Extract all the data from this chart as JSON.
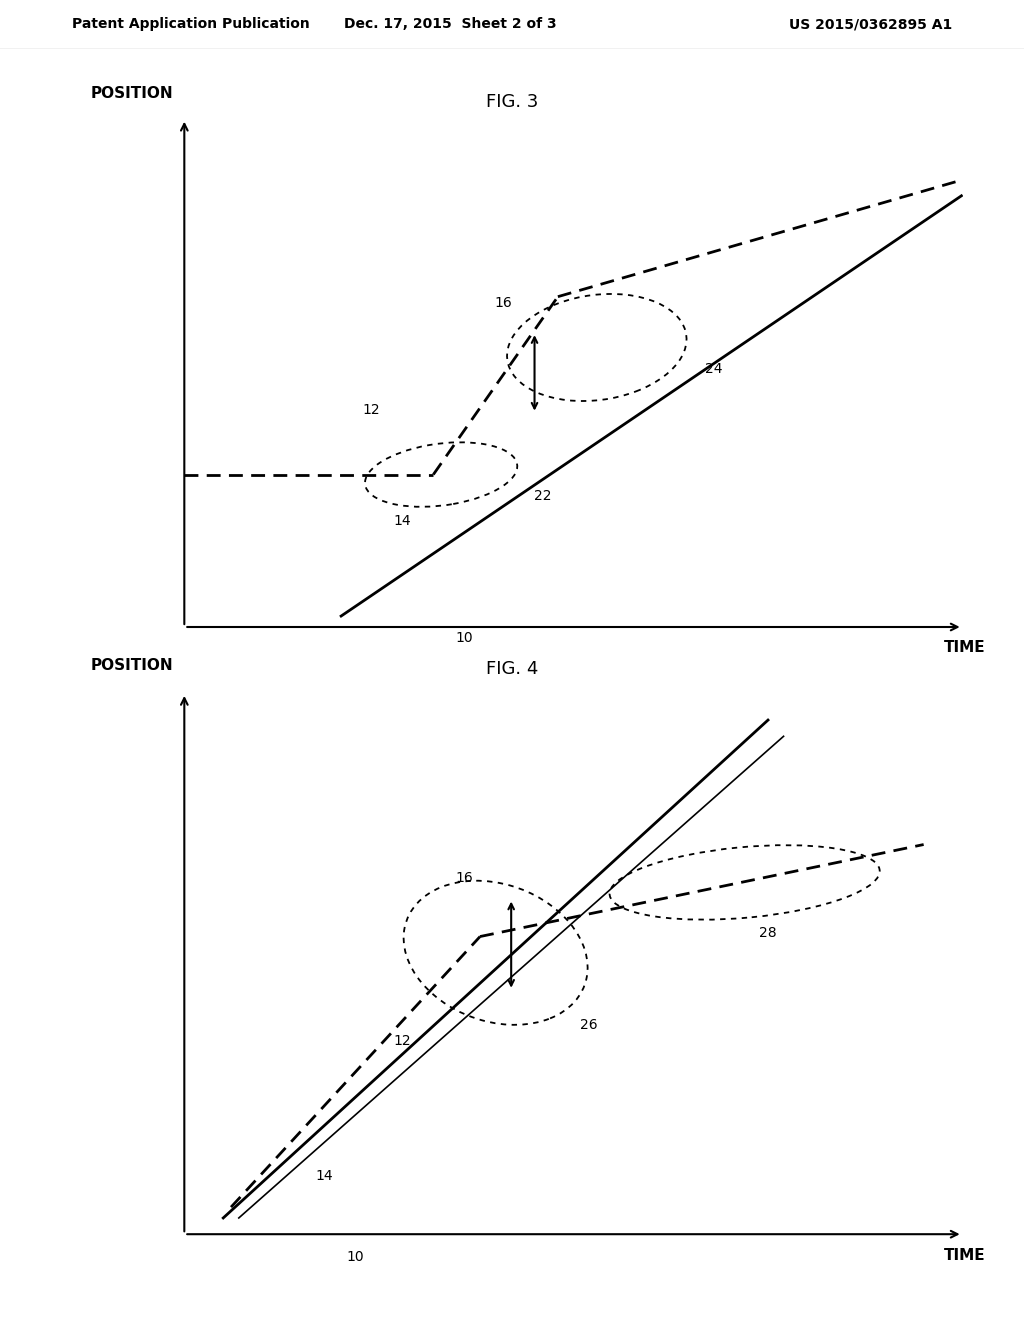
{
  "header_left": "Patent Application Publication",
  "header_center": "Dec. 17, 2015  Sheet 2 of 3",
  "header_right": "US 2015/0362895 A1",
  "fig3_title": "FIG. 3",
  "fig4_title": "FIG. 4",
  "bg_color": "#ffffff",
  "axis_label_position": "POSITION",
  "axis_label_time": "TIME",
  "font_size_header": 10,
  "font_size_fig_title": 13,
  "font_size_axis_label": 11,
  "font_size_number": 10
}
